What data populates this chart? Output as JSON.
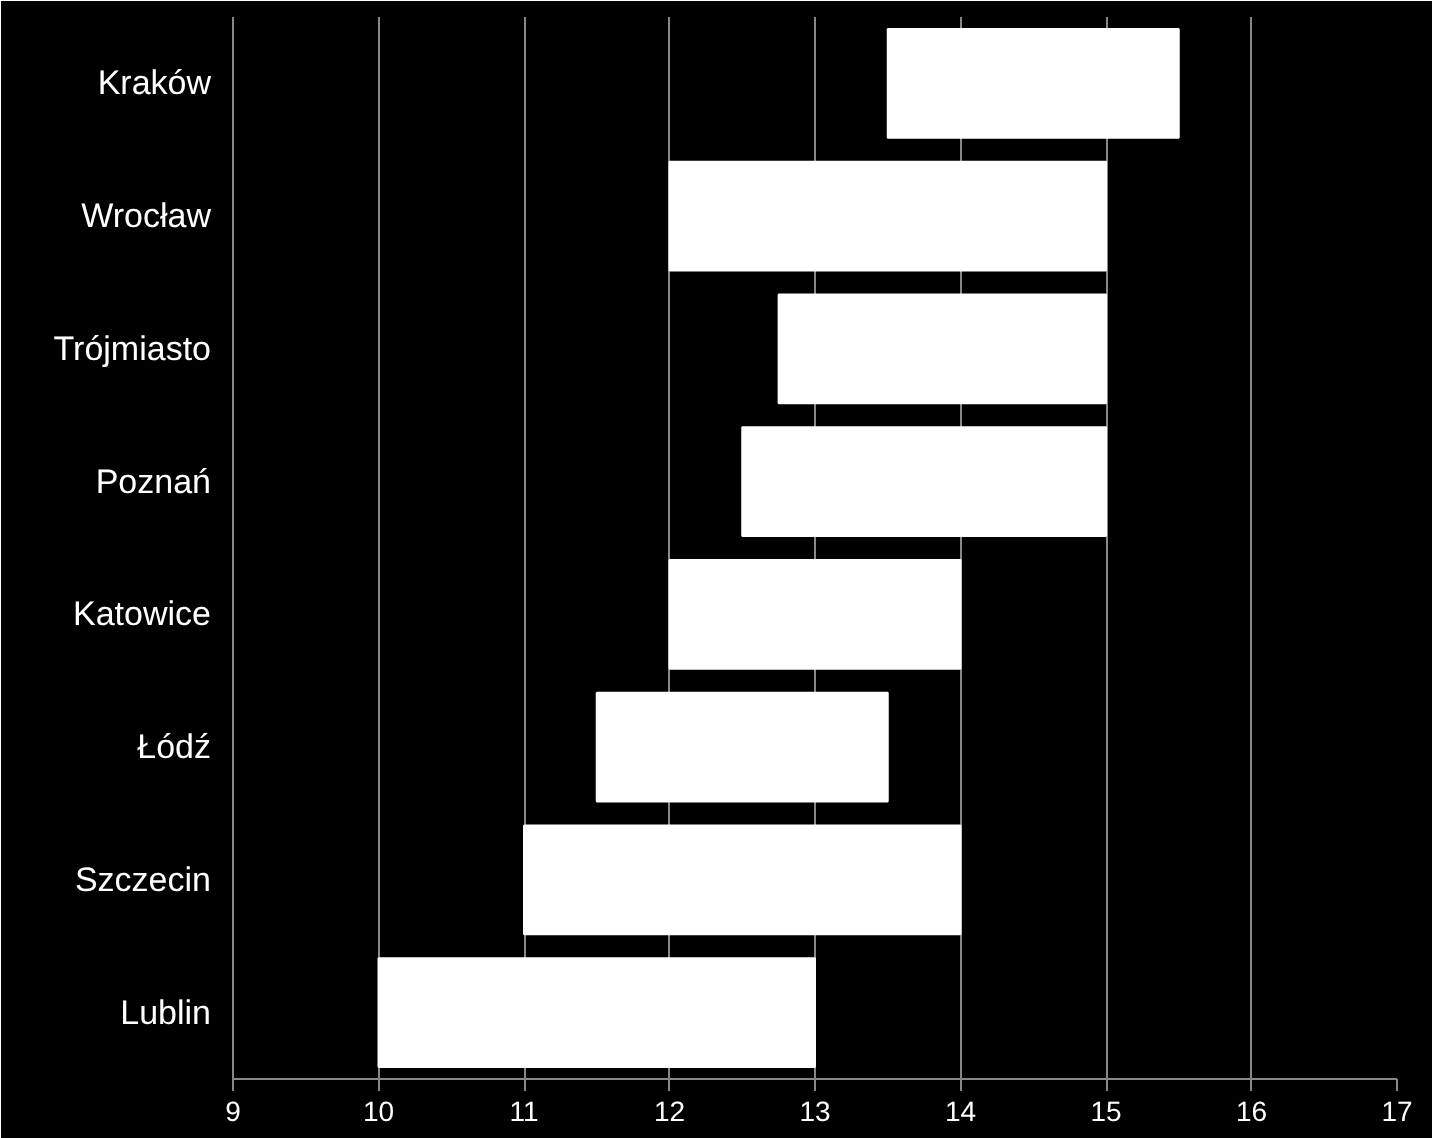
{
  "chart_data": {
    "type": "bar",
    "orientation": "horizontal",
    "categories": [
      "Kraków",
      "Wrocław",
      "Trójmiasto",
      "Poznań",
      "Katowice",
      "Łódź",
      "Szczecin",
      "Lublin"
    ],
    "base": [
      13.5,
      12,
      12.75,
      12.5,
      12,
      11.5,
      11,
      10
    ],
    "values": [
      2,
      3,
      2.25,
      2.5,
      2,
      2,
      3,
      3
    ],
    "color": "#ffffff",
    "xlim": [
      9,
      17
    ],
    "xticks": [
      9,
      10,
      11,
      12,
      13,
      14,
      15,
      16,
      17
    ],
    "grid": "x"
  }
}
